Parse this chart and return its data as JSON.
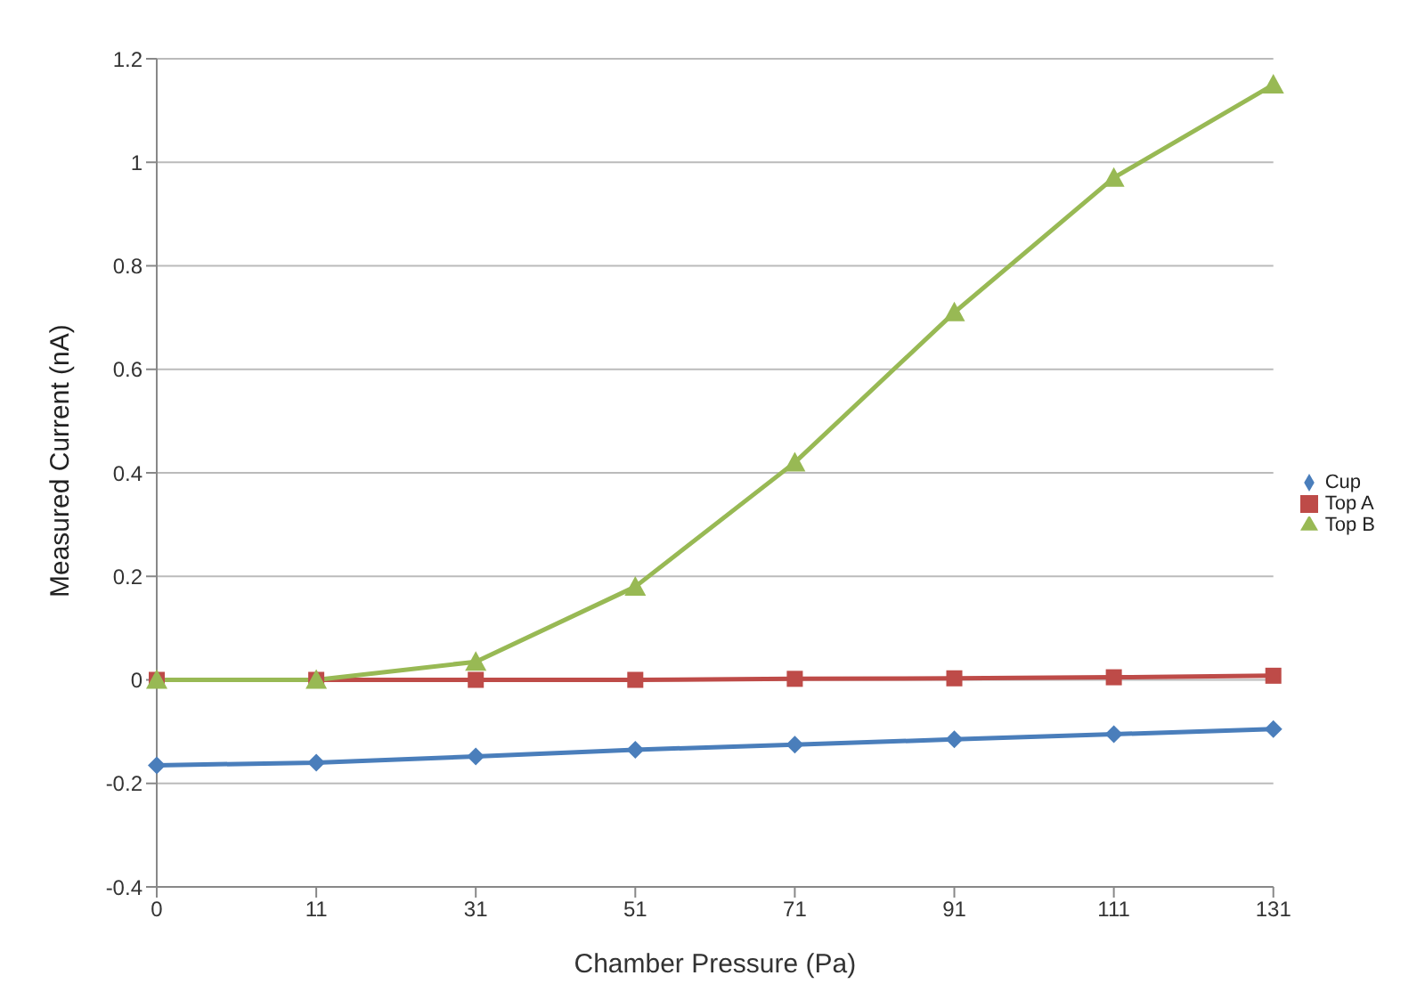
{
  "chart_data": {
    "type": "line",
    "xlabel": "Chamber Pressure (Pa)",
    "ylabel": "Measured Current (nA)",
    "categories": [
      "0",
      "11",
      "31",
      "51",
      "71",
      "91",
      "111",
      "131"
    ],
    "series": [
      {
        "name": "Cup",
        "color": "#4a7ebb",
        "marker": "diamond",
        "values": [
          -0.165,
          -0.16,
          -0.148,
          -0.135,
          -0.125,
          -0.115,
          -0.105,
          -0.095
        ]
      },
      {
        "name": "Top A",
        "color": "#be4b48",
        "marker": "square",
        "values": [
          0,
          0,
          0,
          0,
          0.002,
          0.003,
          0.005,
          0.008
        ]
      },
      {
        "name": "Top B",
        "color": "#98b954",
        "marker": "triangle",
        "values": [
          0,
          0,
          0.035,
          0.18,
          0.42,
          0.71,
          0.97,
          1.15
        ]
      }
    ],
    "ylim": [
      -0.4,
      1.2
    ],
    "yticks": [
      -0.4,
      -0.2,
      0,
      0.2,
      0.4,
      0.6,
      0.8,
      1,
      1.2
    ],
    "grid": "y",
    "legend": "right"
  }
}
